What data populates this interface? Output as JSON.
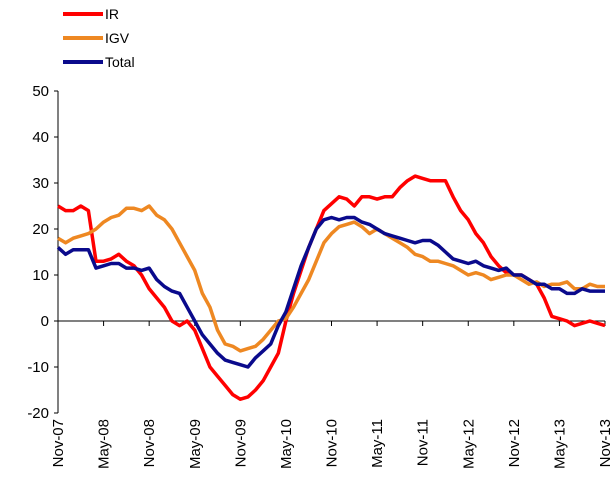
{
  "chart_data": {
    "type": "line",
    "categories": [
      "Nov-07",
      null,
      null,
      null,
      null,
      null,
      "May-08",
      null,
      null,
      null,
      null,
      null,
      "Nov-08",
      null,
      null,
      null,
      null,
      null,
      "May-09",
      null,
      null,
      null,
      null,
      null,
      "Nov-09",
      null,
      null,
      null,
      null,
      null,
      "May-10",
      null,
      null,
      null,
      null,
      null,
      "Nov-10",
      null,
      null,
      null,
      null,
      null,
      "May-11",
      null,
      null,
      null,
      null,
      null,
      "Nov-11",
      null,
      null,
      null,
      null,
      null,
      "May-12",
      null,
      null,
      null,
      null,
      null,
      "Nov-12",
      null,
      null,
      null,
      null,
      null,
      "May-13",
      null,
      null,
      null,
      null,
      null,
      "Nov-13"
    ],
    "series": [
      {
        "name": "IR",
        "color": "#ff0000",
        "values": [
          25,
          24,
          24,
          25,
          24,
          13,
          13,
          13.5,
          14.5,
          13,
          12,
          10,
          7,
          5,
          3,
          0,
          -1,
          0,
          -2,
          -6,
          -10,
          -12,
          -14,
          -16,
          -17,
          -16.5,
          -15,
          -13,
          -10,
          -7,
          0,
          6,
          11,
          16,
          20,
          24,
          25.5,
          27,
          26.5,
          25,
          27,
          27,
          26.5,
          27,
          27,
          29,
          30.5,
          31.5,
          31,
          30.5,
          30.5,
          30.5,
          27,
          24,
          22,
          19,
          17,
          14,
          12,
          10.5,
          10,
          10,
          9,
          8,
          5,
          1,
          0.5,
          0,
          -1,
          -0.5,
          0,
          -0.5,
          -1
        ]
      },
      {
        "name": "IGV",
        "color": "#ee8822",
        "values": [
          18,
          17,
          18,
          18.5,
          19,
          20,
          21.5,
          22.5,
          23,
          24.5,
          24.5,
          24,
          25,
          23,
          22,
          20,
          17,
          14,
          11,
          6,
          3,
          -2,
          -5,
          -5.5,
          -6.5,
          -6,
          -5.5,
          -4,
          -2,
          0,
          0.5,
          3,
          6,
          9,
          13,
          17,
          19,
          20.5,
          21,
          21.5,
          20.5,
          19,
          20,
          19,
          18,
          17,
          16,
          14.5,
          14,
          13,
          13,
          12.5,
          12,
          11,
          10,
          10.5,
          10,
          9,
          9.5,
          10,
          10,
          9,
          8,
          8.5,
          7.5,
          8,
          8,
          8.5,
          7,
          7,
          8,
          7.5,
          7.5
        ]
      },
      {
        "name": "Total",
        "color": "#0a0a8c",
        "values": [
          16,
          14.5,
          15.5,
          15.5,
          15.5,
          11.5,
          12,
          12.5,
          12.5,
          11.5,
          11.5,
          11,
          11.5,
          9,
          7.5,
          6.5,
          6,
          3,
          0,
          -3,
          -5,
          -7,
          -8.5,
          -9,
          -9.5,
          -10,
          -8,
          -6.5,
          -5,
          -1,
          2,
          7,
          12,
          16,
          20,
          22,
          22.5,
          22,
          22.5,
          22.5,
          21.5,
          21,
          20,
          19,
          18.5,
          18,
          17.5,
          17,
          17.5,
          17.5,
          16.5,
          15,
          13.5,
          13,
          12.5,
          13,
          12,
          11.5,
          11,
          11.5,
          10,
          10,
          9,
          8,
          8,
          7,
          7,
          6,
          6,
          7,
          6.5,
          6.5,
          6.5
        ]
      }
    ],
    "ylim": [
      -20,
      50
    ],
    "yticks": [
      -20,
      -10,
      0,
      10,
      20,
      30,
      40,
      50
    ],
    "legend": "top-left"
  }
}
